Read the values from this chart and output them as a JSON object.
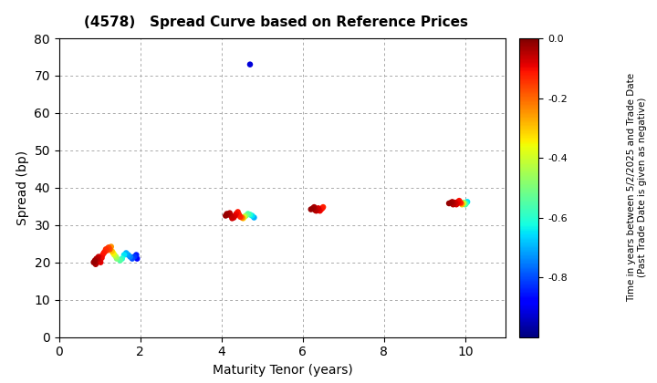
{
  "title": "(4578)   Spread Curve based on Reference Prices",
  "xlabel": "Maturity Tenor (years)",
  "ylabel": "Spread (bp)",
  "colorbar_label": "Time in years between 5/2/2025 and Trade Date\n(Past Trade Date is given as negative)",
  "xlim": [
    0,
    11
  ],
  "ylim": [
    0,
    80
  ],
  "xticks": [
    0,
    2,
    4,
    6,
    8,
    10
  ],
  "yticks": [
    0,
    10,
    20,
    30,
    40,
    50,
    60,
    70,
    80
  ],
  "cmap": "jet",
  "vmin": -1.0,
  "vmax": 0.0,
  "colorbar_ticks": [
    0.0,
    -0.2,
    -0.4,
    -0.6,
    -0.8
  ],
  "bg_color": "#ffffff",
  "clusters": [
    {
      "points": [
        [
          0.85,
          20.0,
          -0.02
        ],
        [
          0.88,
          20.5,
          -0.03
        ],
        [
          0.9,
          19.5,
          -0.04
        ],
        [
          0.92,
          21.0,
          -0.05
        ],
        [
          0.95,
          20.8,
          -0.06
        ],
        [
          0.97,
          21.5,
          -0.07
        ],
        [
          1.0,
          20.3,
          -0.08
        ],
        [
          1.02,
          20.0,
          -0.09
        ],
        [
          1.05,
          21.2,
          -0.1
        ],
        [
          1.07,
          22.0,
          -0.11
        ],
        [
          1.1,
          22.5,
          -0.12
        ],
        [
          1.12,
          22.8,
          -0.13
        ],
        [
          1.15,
          23.5,
          -0.14
        ],
        [
          1.18,
          23.2,
          -0.15
        ],
        [
          1.2,
          23.8,
          -0.16
        ],
        [
          1.22,
          24.0,
          -0.17
        ],
        [
          1.25,
          23.5,
          -0.18
        ],
        [
          1.28,
          24.2,
          -0.25
        ],
        [
          1.3,
          23.0,
          -0.3
        ],
        [
          1.33,
          22.5,
          -0.35
        ],
        [
          1.36,
          22.0,
          -0.4
        ],
        [
          1.4,
          21.5,
          -0.45
        ],
        [
          1.42,
          21.0,
          -0.5
        ],
        [
          1.5,
          20.5,
          -0.55
        ],
        [
          1.55,
          21.0,
          -0.6
        ],
        [
          1.6,
          22.0,
          -0.65
        ],
        [
          1.65,
          22.5,
          -0.7
        ],
        [
          1.7,
          22.0,
          -0.72
        ],
        [
          1.75,
          21.5,
          -0.75
        ],
        [
          1.8,
          21.0,
          -0.8
        ],
        [
          1.85,
          21.5,
          -0.82
        ],
        [
          1.9,
          22.0,
          -0.85
        ],
        [
          1.92,
          21.0,
          -0.88
        ]
      ]
    },
    {
      "points": [
        [
          4.1,
          32.5,
          -0.02
        ],
        [
          4.13,
          33.0,
          -0.03
        ],
        [
          4.16,
          32.8,
          -0.04
        ],
        [
          4.2,
          33.2,
          -0.05
        ],
        [
          4.23,
          32.5,
          -0.06
        ],
        [
          4.26,
          31.8,
          -0.07
        ],
        [
          4.3,
          32.0,
          -0.08
        ],
        [
          4.33,
          32.5,
          -0.09
        ],
        [
          4.36,
          33.0,
          -0.1
        ],
        [
          4.4,
          33.5,
          -0.11
        ],
        [
          4.43,
          32.8,
          -0.12
        ],
        [
          4.46,
          32.2,
          -0.13
        ],
        [
          4.5,
          32.0,
          -0.2
        ],
        [
          4.53,
          31.8,
          -0.3
        ],
        [
          4.56,
          32.2,
          -0.4
        ],
        [
          4.6,
          32.5,
          -0.5
        ],
        [
          4.65,
          33.0,
          -0.55
        ],
        [
          4.7,
          32.8,
          -0.6
        ],
        [
          4.75,
          32.5,
          -0.65
        ],
        [
          4.8,
          32.0,
          -0.7
        ]
      ]
    },
    {
      "points": [
        [
          4.7,
          73.0,
          -0.92
        ]
      ]
    },
    {
      "points": [
        [
          6.2,
          34.2,
          -0.02
        ],
        [
          6.25,
          34.5,
          -0.03
        ],
        [
          6.28,
          34.8,
          -0.04
        ],
        [
          6.3,
          34.0,
          -0.05
        ],
        [
          6.33,
          33.8,
          -0.06
        ],
        [
          6.36,
          34.2,
          -0.07
        ],
        [
          6.38,
          34.5,
          -0.08
        ],
        [
          6.4,
          34.0,
          -0.09
        ],
        [
          6.42,
          33.8,
          -0.1
        ],
        [
          6.45,
          34.2,
          -0.11
        ],
        [
          6.48,
          34.5,
          -0.12
        ],
        [
          6.5,
          34.8,
          -0.13
        ]
      ]
    },
    {
      "points": [
        [
          9.6,
          35.8,
          -0.02
        ],
        [
          9.65,
          36.0,
          -0.03
        ],
        [
          9.68,
          36.2,
          -0.04
        ],
        [
          9.7,
          35.5,
          -0.05
        ],
        [
          9.72,
          35.8,
          -0.06
        ],
        [
          9.75,
          36.0,
          -0.07
        ],
        [
          9.78,
          35.5,
          -0.08
        ],
        [
          9.8,
          35.8,
          -0.09
        ],
        [
          9.82,
          36.2,
          -0.1
        ],
        [
          9.85,
          36.5,
          -0.11
        ],
        [
          9.88,
          36.0,
          -0.12
        ],
        [
          9.9,
          35.8,
          -0.2
        ],
        [
          9.92,
          35.5,
          -0.3
        ],
        [
          9.95,
          35.8,
          -0.4
        ],
        [
          9.97,
          36.0,
          -0.5
        ],
        [
          10.0,
          35.5,
          -0.55
        ],
        [
          10.02,
          35.8,
          -0.6
        ],
        [
          10.05,
          36.2,
          -0.65
        ]
      ]
    }
  ]
}
